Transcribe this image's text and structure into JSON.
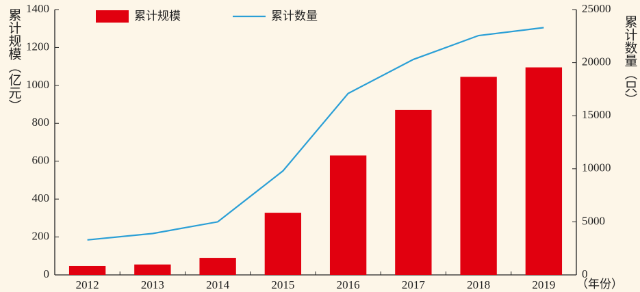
{
  "chart_data": {
    "type": "bar",
    "categories": [
      "2012",
      "2013",
      "2014",
      "2015",
      "2016",
      "2017",
      "2018",
      "2019"
    ],
    "series": [
      {
        "name": "累计规模",
        "type": "bar",
        "color": "#e1000f",
        "values": [
          47,
          55,
          90,
          328,
          630,
          870,
          1045,
          1095
        ]
      },
      {
        "name": "累计数量",
        "type": "line",
        "axis": "y2",
        "color": "#2a9fd6",
        "values": [
          3300,
          3900,
          5000,
          9800,
          17100,
          20300,
          22550,
          23300
        ]
      }
    ],
    "ylabel": "累计规模（亿元）",
    "y2label": "累计数量（只）",
    "xlabel": "（年份）",
    "ylim": [
      0,
      1400
    ],
    "yticks": [
      0,
      200,
      400,
      600,
      800,
      1000,
      1200,
      1400
    ],
    "y2lim": [
      0,
      25000
    ],
    "y2ticks": [
      0,
      5000,
      10000,
      15000,
      20000,
      25000
    ],
    "grid": false,
    "legend": "top"
  }
}
